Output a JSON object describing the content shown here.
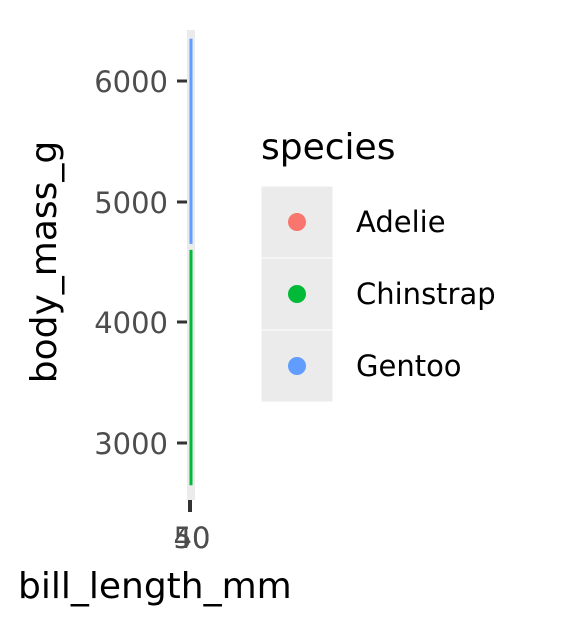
{
  "chart_data": {
    "type": "scatter",
    "title": "",
    "xlabel": "bill_length_mm",
    "ylabel": "body_mass_g",
    "xticks": [
      "40",
      "50"
    ],
    "yticks": [
      3000,
      4000,
      5000,
      6000
    ],
    "ylim": [
      2550,
      6450
    ],
    "legend": {
      "title": "species",
      "position": "right"
    },
    "series": [
      {
        "name": "Adelie",
        "color": "#F8766D",
        "y_range": [
          2750,
          3100
        ]
      },
      {
        "name": "Chinstrap",
        "color": "#00BA38",
        "y_range": [
          2650,
          4600
        ]
      },
      {
        "name": "Gentoo",
        "color": "#619CFF",
        "y_range": [
          4650,
          6350
        ]
      }
    ]
  }
}
